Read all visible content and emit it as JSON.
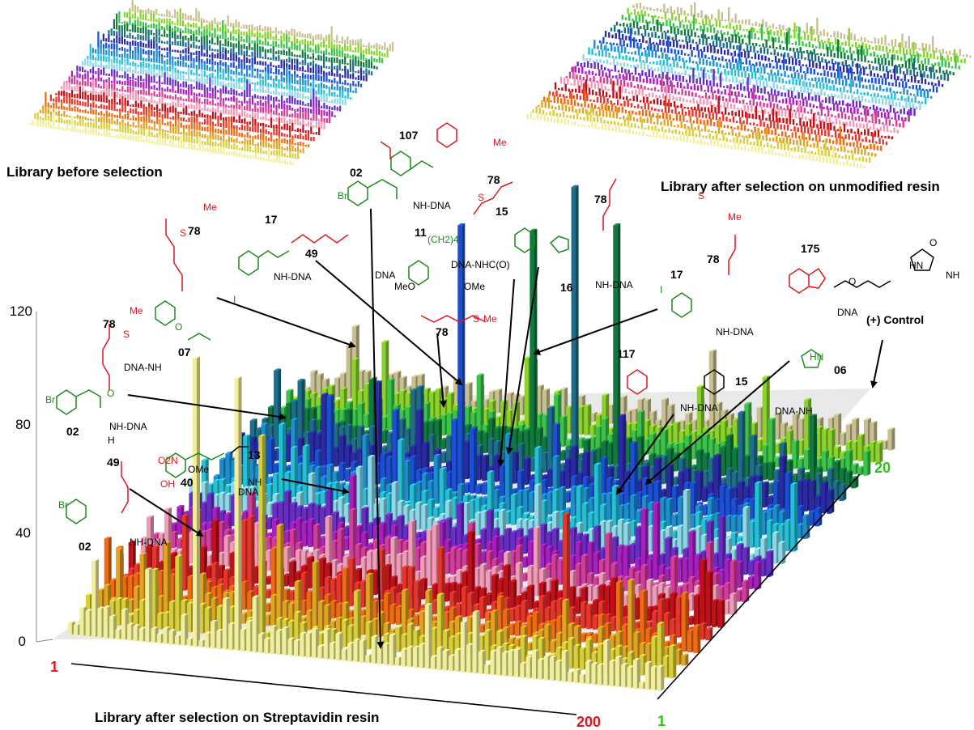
{
  "panels": {
    "before": "Library before selection",
    "unmodified": "Library after selection on unmodified resin",
    "streptavidin": "Library after selection on Streptavidin resin"
  },
  "axis": {
    "z_ticks": [
      "0",
      "40",
      "80",
      "120"
    ],
    "x_start": "1",
    "x_end": "200",
    "y_start": "1",
    "y_end": "20"
  },
  "compound_labels": [
    {
      "id": "lbl-107",
      "text": "107"
    },
    {
      "id": "lbl-02a",
      "text": "02"
    },
    {
      "id": "lbl-78a",
      "text": "78"
    },
    {
      "id": "lbl-15a",
      "text": "15"
    },
    {
      "id": "lbl-78b",
      "text": "78"
    },
    {
      "id": "lbl-16",
      "text": "16"
    },
    {
      "id": "lbl-78c",
      "text": "78"
    },
    {
      "id": "lbl-17a",
      "text": "17"
    },
    {
      "id": "lbl-49a",
      "text": "49"
    },
    {
      "id": "lbl-11",
      "text": "11"
    },
    {
      "id": "lbl-78d",
      "text": "78"
    },
    {
      "id": "lbl-07",
      "text": "07"
    },
    {
      "id": "lbl-78e",
      "text": "78"
    },
    {
      "id": "lbl-02b",
      "text": "02"
    },
    {
      "id": "lbl-49b",
      "text": "49"
    },
    {
      "id": "lbl-40",
      "text": "40"
    },
    {
      "id": "lbl-13",
      "text": "13"
    },
    {
      "id": "lbl-02c",
      "text": "02"
    },
    {
      "id": "lbl-175",
      "text": "175"
    },
    {
      "id": "lbl-17b",
      "text": "17"
    },
    {
      "id": "lbl-78f",
      "text": "78"
    },
    {
      "id": "lbl-117",
      "text": "117"
    },
    {
      "id": "lbl-15b",
      "text": "15"
    },
    {
      "id": "lbl-06",
      "text": "06"
    },
    {
      "id": "lbl-control",
      "text": "(+) Control"
    }
  ],
  "fragments": {
    "nh_dna": "NH-DNA",
    "dna_nh": "DNA-NH",
    "dna_nhc": "DNA-NHC(O)",
    "dna": "DNA",
    "ome": "OMe",
    "meo": "MeO",
    "oh": "OH",
    "o2n": "O2N",
    "me": "Me",
    "br": "Br",
    "i": "I",
    "s": "S",
    "o": "O",
    "n": "N",
    "nh": "NH",
    "hn": "HN",
    "h": "H",
    "ch2_4": "(CH2)4"
  },
  "colors": {
    "row_palette": [
      "#f2ef9b",
      "#d9cf3a",
      "#e0a322",
      "#f06a12",
      "#e8352a",
      "#c20f18",
      "#f29ab8",
      "#d23c9a",
      "#a71fc0",
      "#6a2cc8",
      "#8ad8e8",
      "#25c0d8",
      "#1c8fd0",
      "#1a4fd6",
      "#2a2aa8",
      "#1e6e8a",
      "#0e7a3e",
      "#3bc44a",
      "#8ad42a",
      "#c8c090"
    ],
    "red_text": "#e0161f",
    "green_text": "#1b8a1b",
    "green_axis": "#2ec21b"
  },
  "chart_data": [
    {
      "type": "bar3d",
      "title": "Library before selection",
      "rows": 20,
      "cols": 200,
      "note_values": "uniform low signal across all positions"
    },
    {
      "type": "bar3d",
      "title": "Library after selection on unmodified resin",
      "rows": 20,
      "cols": 200,
      "note_values": "uniform low signal across all positions"
    },
    {
      "type": "bar3d",
      "title": "Library after selection on Streptavidin resin",
      "zlim": [
        0,
        120
      ],
      "z_ticks": [
        0,
        40,
        80,
        120
      ],
      "x_range": [
        1,
        200
      ],
      "y_range": [
        1,
        20
      ],
      "baseline": 7,
      "peaks": [
        {
          "x": 32,
          "row": 1,
          "value": 28,
          "label": "02-49"
        },
        {
          "x": 42,
          "row": 0,
          "value": 108,
          "label": "02-78"
        },
        {
          "x": 55,
          "row": 0,
          "value": 102,
          "label": "17-78"
        },
        {
          "x": 60,
          "row": 1,
          "value": 76,
          "label": "17-49"
        },
        {
          "x": 62,
          "row": 2,
          "value": 38,
          "label": "13-40"
        },
        {
          "x": 78,
          "row": 13,
          "value": 100,
          "label": "02-107"
        },
        {
          "x": 90,
          "row": 16,
          "value": 85,
          "label": "07-78"
        },
        {
          "x": 108,
          "row": 15,
          "value": 108,
          "label": "16-78"
        },
        {
          "x": 118,
          "row": 16,
          "value": 90,
          "label": "17-78"
        },
        {
          "x": 150,
          "row": 4,
          "value": 42,
          "label": "175-06"
        },
        {
          "x": 200,
          "row": 19,
          "value": 45,
          "label": "(+) Control"
        }
      ]
    }
  ]
}
